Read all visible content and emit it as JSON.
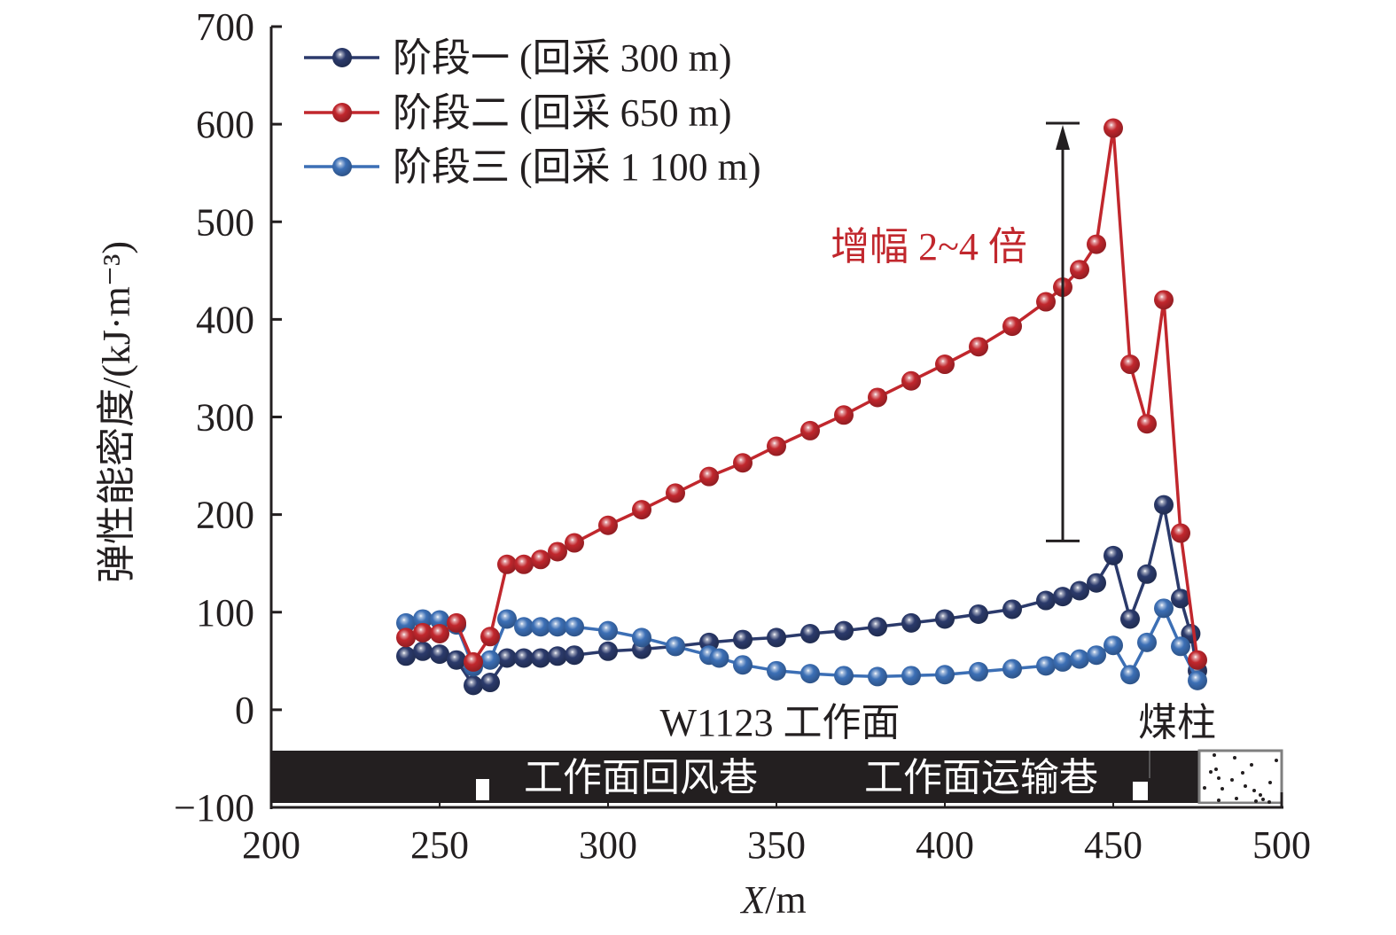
{
  "chart_data": {
    "type": "line",
    "title": "",
    "xlabel_italic": "X",
    "xlabel_unit": "/m",
    "ylabel": "弹性能密度/(kJ·m⁻³)",
    "xlim": [
      200,
      500
    ],
    "ylim": [
      -100,
      700
    ],
    "xticks": [
      200,
      250,
      300,
      350,
      400,
      450,
      500
    ],
    "yticks": [
      -100,
      0,
      100,
      200,
      300,
      400,
      500,
      600,
      700
    ],
    "xtick_labels": [
      "200",
      "250",
      "300",
      "350",
      "400",
      "450",
      "500"
    ],
    "ytick_labels": [
      "−100",
      "0",
      "100",
      "200",
      "300",
      "400",
      "500",
      "600",
      "700"
    ],
    "grid": false,
    "legend_position": "top-left",
    "series": [
      {
        "name": "阶段一 (回采 300 m)",
        "color": "#2b3a6b",
        "x": [
          240,
          245,
          250,
          255,
          260,
          265,
          270,
          275,
          280,
          285,
          290,
          300,
          310,
          320,
          330,
          340,
          350,
          360,
          370,
          380,
          390,
          400,
          410,
          420,
          430,
          435,
          440,
          445,
          450,
          455,
          460,
          465,
          470,
          473,
          475
        ],
        "y": [
          55,
          60,
          57,
          51,
          25,
          28,
          53,
          53,
          53,
          55,
          56,
          60,
          62,
          65,
          69,
          72,
          74,
          78,
          81,
          85,
          89,
          93,
          98,
          103,
          112,
          116,
          122,
          130,
          158,
          93,
          139,
          210,
          114,
          78,
          40
        ]
      },
      {
        "name": "阶段二 (回采 650 m)",
        "color": "#c1272d",
        "x": [
          240,
          245,
          250,
          255,
          260,
          265,
          270,
          275,
          280,
          285,
          290,
          300,
          310,
          320,
          330,
          340,
          350,
          360,
          370,
          380,
          390,
          400,
          410,
          420,
          430,
          435,
          440,
          445,
          450,
          455,
          460,
          465,
          470,
          475
        ],
        "y": [
          74,
          79,
          78,
          89,
          49,
          75,
          149,
          149,
          154,
          162,
          171,
          189,
          205,
          222,
          239,
          253,
          270,
          286,
          302,
          320,
          337,
          354,
          372,
          393,
          418,
          433,
          451,
          477,
          596,
          354,
          293,
          420,
          181,
          51
        ]
      },
      {
        "name": "阶段三 (回采 1 100 m)",
        "color": "#3c6fb5",
        "x": [
          240,
          245,
          250,
          255,
          260,
          265,
          270,
          275,
          280,
          285,
          290,
          300,
          310,
          320,
          330,
          333,
          340,
          350,
          360,
          370,
          380,
          390,
          400,
          410,
          420,
          430,
          435,
          440,
          445,
          450,
          455,
          460,
          465,
          470,
          475
        ],
        "y": [
          89,
          93,
          92,
          87,
          44,
          51,
          93,
          85,
          85,
          85,
          85,
          81,
          74,
          65,
          56,
          53,
          46,
          40,
          37,
          35,
          34,
          35,
          36,
          39,
          42,
          45,
          49,
          52,
          56,
          66,
          36,
          69,
          104,
          65,
          30
        ]
      }
    ],
    "annotations": {
      "increase_text": "增幅 2~4 倍",
      "increase_arrow": {
        "x": 435,
        "y_from": 173,
        "y_to": 601
      },
      "face_label": "W1123 工作面",
      "pillar_label": "煤柱",
      "return_airway_label": "工作面回风巷",
      "haulage_airway_label": "工作面运输巷",
      "strata_bar": {
        "y_from": -45,
        "y_to": -100,
        "x_from": 200,
        "x_to": 462
      },
      "pillar_box": {
        "x_from": 462,
        "x_to": 500
      }
    }
  }
}
